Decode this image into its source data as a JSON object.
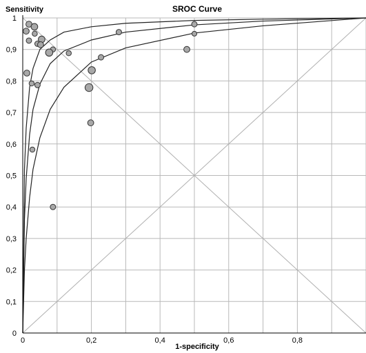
{
  "chart_data": {
    "type": "scatter",
    "title": "SROC Curve",
    "xlabel": "1-specificity",
    "ylabel": "Sensitivity",
    "xlim": [
      0,
      1
    ],
    "ylim": [
      0,
      1
    ],
    "xticks": [
      0,
      0.2,
      0.4,
      0.6,
      0.8
    ],
    "xtick_labels": [
      "0",
      "0,2",
      "0,4",
      "0,6",
      "0,8"
    ],
    "yticks": [
      0,
      0.1,
      0.2,
      0.3,
      0.4,
      0.5,
      0.6,
      0.7,
      0.8,
      0.9,
      1
    ],
    "ytick_labels": [
      "0",
      "0,1",
      "0,2",
      "0,3",
      "0,4",
      "0,5",
      "0,6",
      "0,7",
      "0,8",
      "0,9",
      "1"
    ],
    "grid": true,
    "colors": {
      "point_fill": "#a8a8a8",
      "point_stroke": "#333333",
      "curve": "#222222",
      "grid": "#b8b8b8",
      "reference_lines": "#b0b0b0"
    },
    "curves": [
      {
        "points": [
          [
            0,
            0
          ],
          [
            0.005,
            0.52
          ],
          [
            0.01,
            0.65
          ],
          [
            0.02,
            0.78
          ],
          [
            0.03,
            0.84
          ],
          [
            0.05,
            0.9
          ],
          [
            0.08,
            0.93
          ],
          [
            0.12,
            0.955
          ],
          [
            0.2,
            0.972
          ],
          [
            0.3,
            0.983
          ],
          [
            0.5,
            0.992
          ],
          [
            0.7,
            0.996
          ],
          [
            1,
            1
          ]
        ]
      },
      {
        "points": [
          [
            0,
            0
          ],
          [
            0.005,
            0.36
          ],
          [
            0.01,
            0.49
          ],
          [
            0.02,
            0.63
          ],
          [
            0.03,
            0.71
          ],
          [
            0.05,
            0.79
          ],
          [
            0.08,
            0.855
          ],
          [
            0.12,
            0.895
          ],
          [
            0.2,
            0.93
          ],
          [
            0.3,
            0.955
          ],
          [
            0.5,
            0.978
          ],
          [
            0.7,
            0.99
          ],
          [
            1,
            1
          ]
        ]
      },
      {
        "points": [
          [
            0,
            0
          ],
          [
            0.005,
            0.2
          ],
          [
            0.01,
            0.3
          ],
          [
            0.02,
            0.43
          ],
          [
            0.03,
            0.52
          ],
          [
            0.05,
            0.62
          ],
          [
            0.08,
            0.71
          ],
          [
            0.12,
            0.78
          ],
          [
            0.2,
            0.86
          ],
          [
            0.3,
            0.905
          ],
          [
            0.5,
            0.952
          ],
          [
            0.7,
            0.975
          ],
          [
            1,
            1
          ]
        ]
      }
    ],
    "points": [
      {
        "x": 0.018,
        "y": 0.98,
        "size": 1
      },
      {
        "x": 0.034,
        "y": 0.972,
        "size": 1.1
      },
      {
        "x": 0.01,
        "y": 0.958,
        "size": 1
      },
      {
        "x": 0.035,
        "y": 0.95,
        "size": 0.85
      },
      {
        "x": 0.055,
        "y": 0.932,
        "size": 1.1
      },
      {
        "x": 0.018,
        "y": 0.928,
        "size": 0.9
      },
      {
        "x": 0.043,
        "y": 0.918,
        "size": 0.9
      },
      {
        "x": 0.052,
        "y": 0.915,
        "size": 1
      },
      {
        "x": 0.088,
        "y": 0.9,
        "size": 0.85
      },
      {
        "x": 0.077,
        "y": 0.89,
        "size": 1.2
      },
      {
        "x": 0.012,
        "y": 0.825,
        "size": 1
      },
      {
        "x": 0.026,
        "y": 0.792,
        "size": 0.85
      },
      {
        "x": 0.043,
        "y": 0.787,
        "size": 0.9
      },
      {
        "x": 0.028,
        "y": 0.582,
        "size": 0.85
      },
      {
        "x": 0.088,
        "y": 0.4,
        "size": 0.9
      },
      {
        "x": 0.134,
        "y": 0.888,
        "size": 0.85
      },
      {
        "x": 0.228,
        "y": 0.875,
        "size": 0.9
      },
      {
        "x": 0.201,
        "y": 0.834,
        "size": 1.2
      },
      {
        "x": 0.193,
        "y": 0.779,
        "size": 1.3
      },
      {
        "x": 0.198,
        "y": 0.667,
        "size": 1
      },
      {
        "x": 0.28,
        "y": 0.955,
        "size": 0.9
      },
      {
        "x": 0.5,
        "y": 0.98,
        "size": 0.9
      },
      {
        "x": 0.5,
        "y": 0.95,
        "size": 0.8
      },
      {
        "x": 0.478,
        "y": 0.9,
        "size": 1
      }
    ]
  }
}
